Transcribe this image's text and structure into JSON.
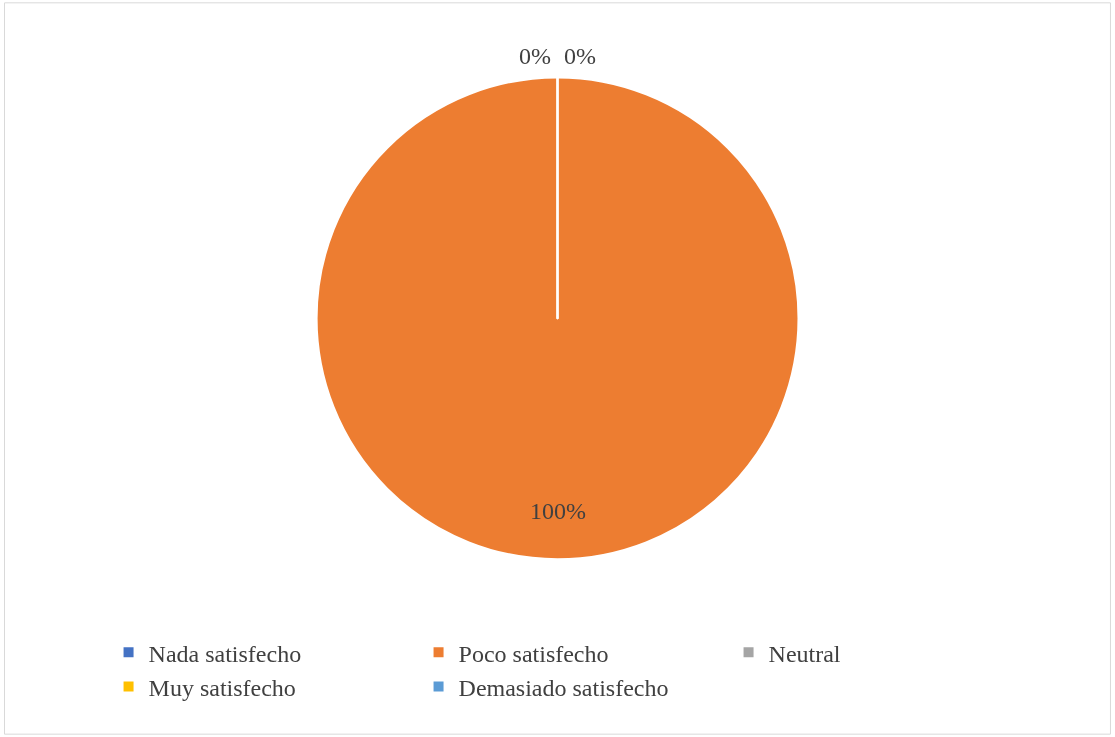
{
  "chart_data": {
    "type": "pie",
    "categories": [
      "Nada satisfecho",
      "Poco satisfecho",
      "Neutral",
      "Muy satisfecho",
      "Demasiado satisfecho"
    ],
    "values": [
      0,
      100,
      0,
      0,
      0
    ],
    "colors": [
      "#4472c4",
      "#ed7d31",
      "#a5a5a5",
      "#ffc000",
      "#5b9bd5"
    ],
    "value_labels": [
      "0%",
      "100%",
      null,
      null,
      "0%"
    ],
    "legend": "bottom"
  }
}
